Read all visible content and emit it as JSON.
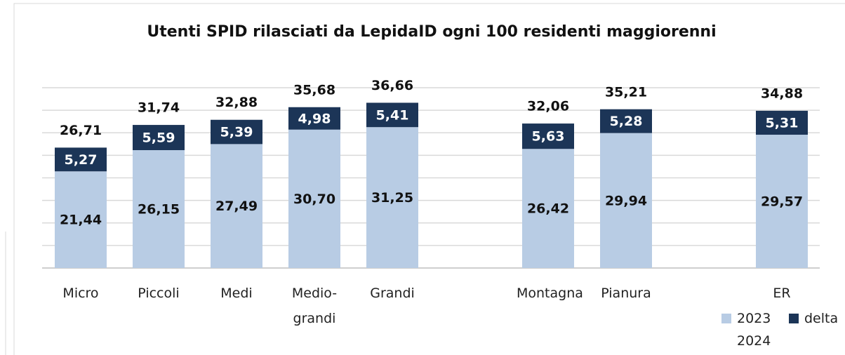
{
  "chart_data": {
    "type": "stacked_bar",
    "title": "Utenti SPID rilasciati da LepidaID ogni 100 residenti maggiorenni",
    "categories": [
      "Micro",
      "Piccoli",
      "Medi",
      "Medio-grandi",
      "Grandi",
      null,
      "Montagna",
      "Pianura",
      null,
      "ER"
    ],
    "series": [
      {
        "name": "2023 2024",
        "color": "#b8cce4",
        "values": [
          21.44,
          26.15,
          27.49,
          30.7,
          31.25,
          null,
          26.42,
          29.94,
          null,
          29.57
        ],
        "value_labels": [
          "21,44",
          "26,15",
          "27,49",
          "30,70",
          "31,25",
          null,
          "26,42",
          "29,94",
          null,
          "29,57"
        ]
      },
      {
        "name": "delta",
        "color": "#1c3557",
        "values": [
          5.27,
          5.59,
          5.39,
          4.98,
          5.41,
          null,
          5.63,
          5.28,
          null,
          5.31
        ],
        "value_labels": [
          "5,27",
          "5,59",
          "5,39",
          "4,98",
          "5,41",
          null,
          "5,63",
          "5,28",
          null,
          "5,31"
        ]
      }
    ],
    "totals": [
      26.71,
      31.74,
      32.88,
      35.68,
      36.66,
      null,
      32.06,
      35.21,
      null,
      34.88
    ],
    "total_labels": [
      "26,71",
      "31,74",
      "32,88",
      "35,68",
      "36,66",
      null,
      "32,06",
      "35,21",
      null,
      "34,88"
    ],
    "ylim": [
      0,
      40
    ],
    "yticks": [
      0,
      5,
      10,
      15,
      20,
      25,
      30,
      35,
      40
    ],
    "grid": true
  }
}
